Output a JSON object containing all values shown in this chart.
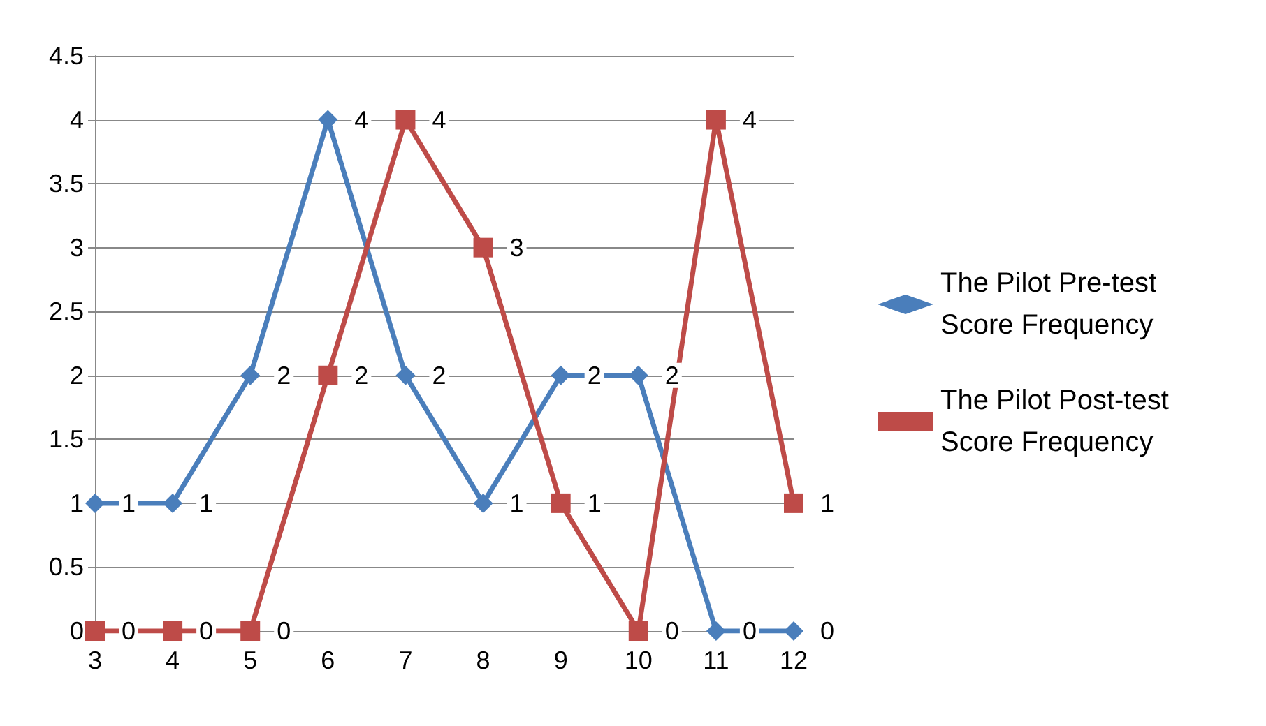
{
  "chart_data": {
    "type": "line",
    "categories": [
      "3",
      "4",
      "5",
      "6",
      "7",
      "8",
      "9",
      "10",
      "11",
      "12"
    ],
    "series": [
      {
        "name": "The Pilot Pre-test Score Frequency",
        "color": "#4a7ebb",
        "marker": "diamond",
        "values": [
          1,
          1,
          2,
          4,
          2,
          1,
          2,
          2,
          0,
          0
        ]
      },
      {
        "name": "The Pilot Post-test Score Frequency",
        "color": "#be4b48",
        "marker": "square",
        "values": [
          0,
          0,
          0,
          2,
          4,
          3,
          1,
          0,
          4,
          1
        ]
      }
    ],
    "ylim": [
      0,
      4.5
    ],
    "yticks": [
      0,
      0.5,
      1,
      1.5,
      2,
      2.5,
      3,
      3.5,
      4,
      4.5
    ],
    "grid": "y",
    "legend": "right",
    "data_labels": true,
    "line_style": "solid"
  }
}
